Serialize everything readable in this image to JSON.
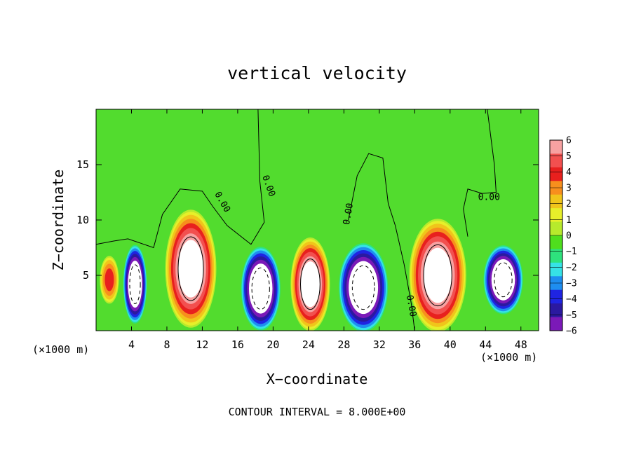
{
  "chart_data": {
    "type": "heatmap",
    "title": "vertical velocity",
    "xlabel": "X−coordinate",
    "ylabel": "Z−coordinate",
    "x_unit_left": "(×1000 m)",
    "x_unit_right": "(×1000 m)",
    "footer": "CONTOUR INTERVAL = 8.000E+00",
    "xlim": [
      0,
      50
    ],
    "ylim": [
      0,
      20
    ],
    "x_ticks": [
      4,
      8,
      12,
      16,
      20,
      24,
      28,
      32,
      36,
      40,
      44,
      48
    ],
    "y_ticks": [
      5,
      10,
      15
    ],
    "colorbar": {
      "levels": [
        6,
        5,
        4,
        3,
        2,
        1,
        0,
        -1,
        -2,
        -3,
        -4,
        -5,
        -6
      ],
      "labels": [
        "6",
        "5",
        "4",
        "3",
        "2",
        "1",
        "0",
        "−1",
        "−2",
        "−3",
        "−4",
        "−5",
        "−6"
      ],
      "colors": [
        "#f7a1a1",
        "#f2504f",
        "#e8201e",
        "#f78f1d",
        "#f0c51b",
        "#e7ef2a",
        "#b7ea2c",
        "#4fde1d",
        "#2ee27d",
        "#36e2e6",
        "#1e8ef0",
        "#1f24e2",
        "#2b19a0",
        "#7b19b8"
      ]
    },
    "contour_labels": [
      {
        "text": "0.00",
        "x": 14,
        "z": 11.5,
        "angle": 60
      },
      {
        "text": "0.00",
        "x": 19.2,
        "z": 13,
        "angle": 70
      },
      {
        "text": "0.00",
        "x": 28.8,
        "z": 10.5,
        "angle": -80
      },
      {
        "text": "0.00",
        "x": 35.3,
        "z": 2.2,
        "angle": 80
      },
      {
        "text": "0.00",
        "x": 44.4,
        "z": 11.8,
        "angle": 0
      }
    ],
    "updrafts": [
      {
        "x": 10.7,
        "z": 5.6,
        "rx": 2.6,
        "rz": 4.8,
        "peak": 9
      },
      {
        "x": 24.2,
        "z": 4.2,
        "rx": 2.0,
        "rz": 3.8,
        "peak": 9
      },
      {
        "x": 38.6,
        "z": 5.0,
        "rx": 2.9,
        "rz": 4.6,
        "peak": 9
      },
      {
        "x": 1.5,
        "z": 4.6,
        "rx": 1.0,
        "rz": 2.0,
        "peak": 5
      }
    ],
    "downdrafts": [
      {
        "x": 4.4,
        "z": 4.2,
        "rx": 1.2,
        "rz": 3.2,
        "peak": -9
      },
      {
        "x": 18.6,
        "z": 3.8,
        "rx": 2.0,
        "rz": 3.4,
        "peak": -9
      },
      {
        "x": 30.2,
        "z": 3.9,
        "rx": 2.5,
        "rz": 3.6,
        "peak": -9
      },
      {
        "x": 46.0,
        "z": 4.6,
        "rx": 2.0,
        "rz": 2.8,
        "peak": -9
      }
    ]
  }
}
